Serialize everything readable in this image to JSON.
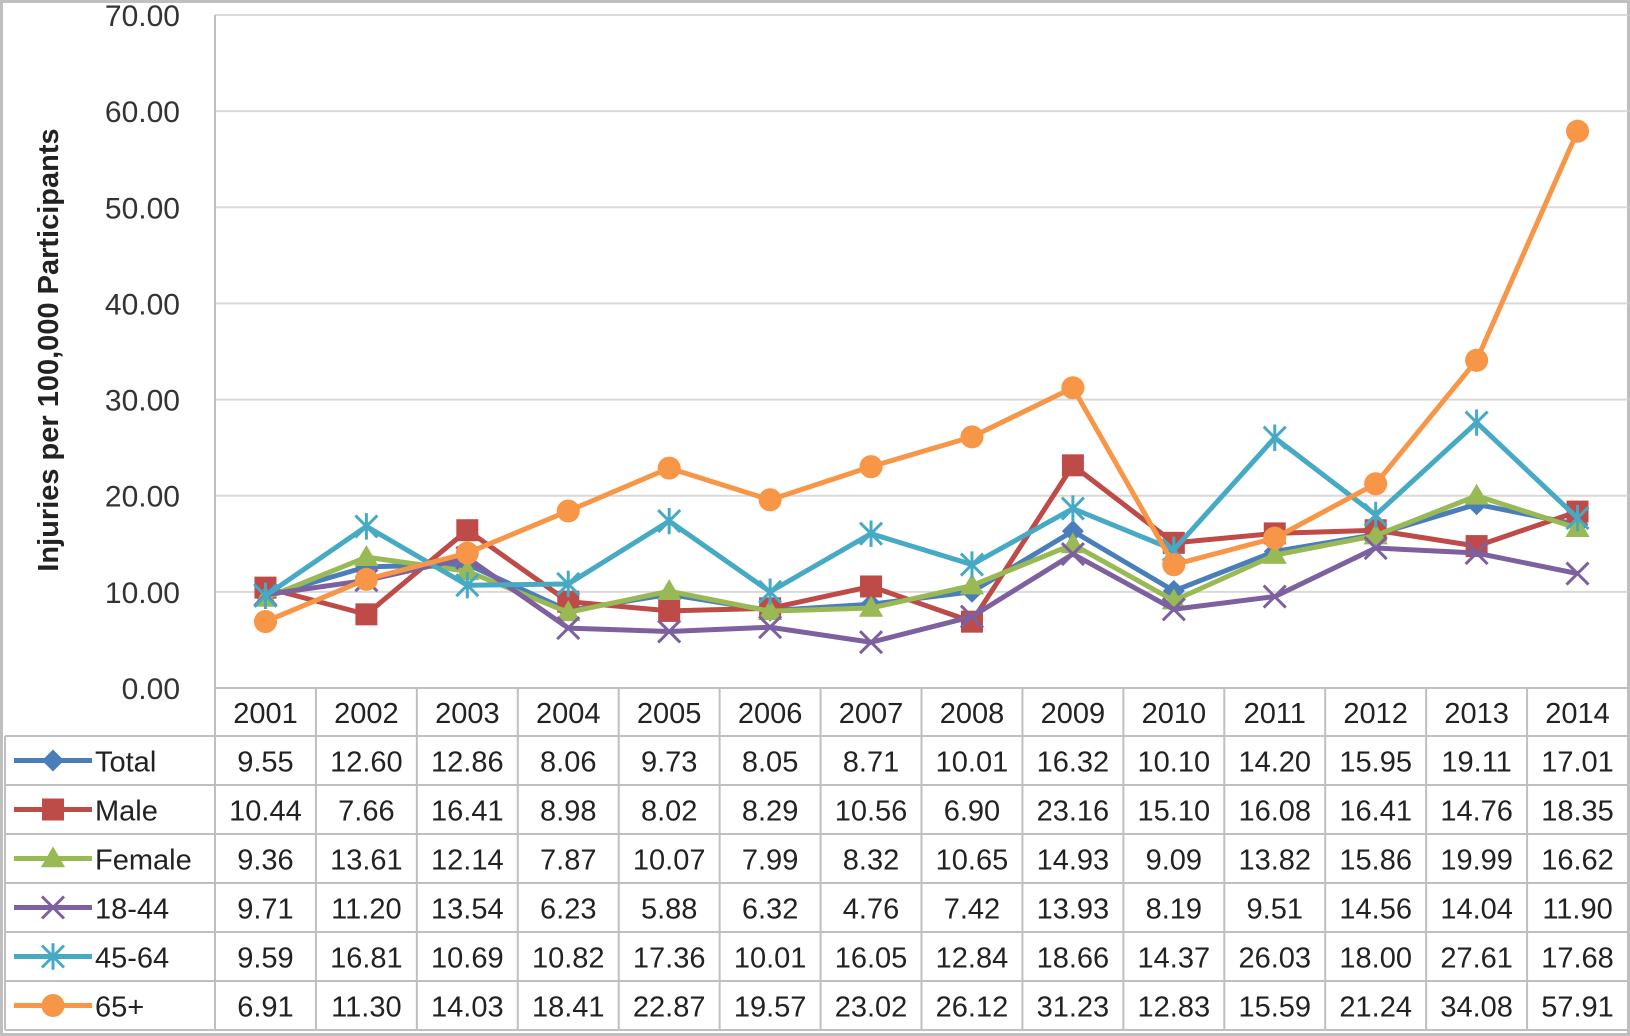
{
  "chart_data": {
    "type": "line",
    "title": "",
    "xlabel": "",
    "ylabel": "Injuries per 100,000 Participants",
    "ylim": [
      0,
      70
    ],
    "yticks": [
      "0.00",
      "10.00",
      "20.00",
      "30.00",
      "40.00",
      "50.00",
      "60.00",
      "70.00"
    ],
    "grid": true,
    "legend_placement": "data-table-rows",
    "categories": [
      "2001",
      "2002",
      "2003",
      "2004",
      "2005",
      "2006",
      "2007",
      "2008",
      "2009",
      "2010",
      "2011",
      "2012",
      "2013",
      "2014"
    ],
    "series": [
      {
        "name": "Total",
        "color": "#4a7ebb",
        "marker": "diamond",
        "values": [
          9.55,
          12.6,
          12.86,
          8.06,
          9.73,
          8.05,
          8.71,
          10.01,
          16.32,
          10.1,
          14.2,
          15.95,
          19.11,
          17.01
        ],
        "labels": [
          "9.55",
          "12.60",
          "12.86",
          "8.06",
          "9.73",
          "8.05",
          "8.71",
          "10.01",
          "16.32",
          "10.10",
          "14.20",
          "15.95",
          "19.11",
          "17.01"
        ]
      },
      {
        "name": "Male",
        "color": "#be4b48",
        "marker": "square",
        "values": [
          10.44,
          7.66,
          16.41,
          8.98,
          8.02,
          8.29,
          10.56,
          6.9,
          23.16,
          15.1,
          16.08,
          16.41,
          14.76,
          18.35
        ],
        "labels": [
          "10.44",
          "7.66",
          "16.41",
          "8.98",
          "8.02",
          "8.29",
          "10.56",
          "6.90",
          "23.16",
          "15.10",
          "16.08",
          "16.41",
          "14.76",
          "18.35"
        ]
      },
      {
        "name": "Female",
        "color": "#98b954",
        "marker": "triangle",
        "values": [
          9.36,
          13.61,
          12.14,
          7.87,
          10.07,
          7.99,
          8.32,
          10.65,
          14.93,
          9.09,
          13.82,
          15.86,
          19.99,
          16.62
        ],
        "labels": [
          "9.36",
          "13.61",
          "12.14",
          "7.87",
          "10.07",
          "7.99",
          "8.32",
          "10.65",
          "14.93",
          "9.09",
          "13.82",
          "15.86",
          "19.99",
          "16.62"
        ]
      },
      {
        "name": "18-44",
        "color": "#7d60a0",
        "marker": "x",
        "values": [
          9.71,
          11.2,
          13.54,
          6.23,
          5.88,
          6.32,
          4.76,
          7.42,
          13.93,
          8.19,
          9.51,
          14.56,
          14.04,
          11.9
        ],
        "labels": [
          "9.71",
          "11.20",
          "13.54",
          "6.23",
          "5.88",
          "6.32",
          "4.76",
          "7.42",
          "13.93",
          "8.19",
          "9.51",
          "14.56",
          "14.04",
          "11.90"
        ]
      },
      {
        "name": "45-64",
        "color": "#46aac5",
        "marker": "star",
        "values": [
          9.59,
          16.81,
          10.69,
          10.82,
          17.36,
          10.01,
          16.05,
          12.84,
          18.66,
          14.37,
          26.03,
          18.0,
          27.61,
          17.68
        ],
        "labels": [
          "9.59",
          "16.81",
          "10.69",
          "10.82",
          "17.36",
          "10.01",
          "16.05",
          "12.84",
          "18.66",
          "14.37",
          "26.03",
          "18.00",
          "27.61",
          "17.68"
        ]
      },
      {
        "name": "65+",
        "color": "#f79646",
        "marker": "circle",
        "values": [
          6.91,
          11.3,
          14.03,
          18.41,
          22.87,
          19.57,
          23.02,
          26.12,
          31.23,
          12.83,
          15.59,
          21.24,
          34.08,
          57.91
        ],
        "labels": [
          "6.91",
          "11.30",
          "14.03",
          "18.41",
          "22.87",
          "19.57",
          "23.02",
          "26.12",
          "31.23",
          "12.83",
          "15.59",
          "21.24",
          "34.08",
          "57.91"
        ]
      }
    ]
  }
}
